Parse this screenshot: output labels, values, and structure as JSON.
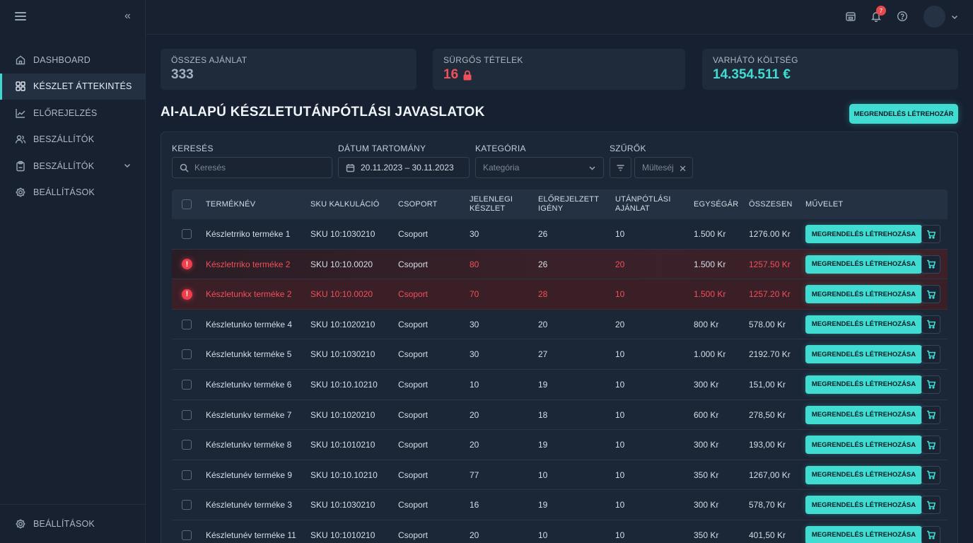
{
  "sidebar": {
    "items": [
      {
        "label": "DASHBOARD",
        "icon": "home-icon"
      },
      {
        "label": "KÉSZLET ÁTTEKINTÉS",
        "icon": "grid-icon",
        "active": true
      },
      {
        "label": "ELŐREJELZÉS",
        "icon": "trend-icon"
      },
      {
        "label": "BESZÁLLÍTÓK",
        "icon": "users-icon"
      },
      {
        "label": "BESZÁLLÍTÓK",
        "icon": "clipboard-icon",
        "has_chevron": true
      },
      {
        "label": "BEÁLLÍTÁSOK",
        "icon": "gear-icon"
      }
    ],
    "bottom_item": {
      "label": "BEÁLLÍTÁSOK",
      "icon": "gear-icon"
    }
  },
  "topbar": {
    "notification_count": "7"
  },
  "stats": {
    "total_offers": {
      "label": "ÖSSZES AJÁNLAT",
      "value": "333"
    },
    "urgent_items": {
      "label": "SÜRGŐS TÉTELEK",
      "value": "16"
    },
    "expected_cost": {
      "label": "VARHÁTÓ KÖLTSÉG",
      "value": "14.354.511 €"
    }
  },
  "page_title": "AI-ALAPÚ KÉSZLETUTÁNPÓTLÁSI JAVASLATOK",
  "create_order_button": "MEGRENDELÉS LÉTREHOZÁR",
  "filters": {
    "search_label": "KERESÉS",
    "search_placeholder": "Keresés",
    "date_label": "DÁTUM TARTOMÁNY",
    "date_value": "20.11.2023 – 30.11.2023",
    "category_label": "KATEGÓRIA",
    "category_placeholder": "Kategória",
    "filters_label": "SZŰRŐK",
    "chip_label": "Mülteséj"
  },
  "table": {
    "headers": [
      "TERMÉKNÉV",
      "SKU KALKULÁCIÓ",
      "CSOPORT",
      "JELENLEGI KÉSZLET",
      "ELŐREJELZETT IGÉNY",
      "UTÁNPÓTLÁSI AJÁNLAT",
      "EGYSÉGÁR",
      "ÖSSZESEN",
      "MŰVELET"
    ],
    "action_label": "MEGRENDELÉS LÉTREHOZÁSA",
    "rows": [
      {
        "name": "Készletrriko terméke 1",
        "sku": "SKU 10:1030210",
        "group": "Csoport",
        "stock": "30",
        "forecast": "26",
        "offer": "10",
        "unit_price": "1.500 Kr",
        "total": "1276.00 Kr",
        "alert": false
      },
      {
        "name": "Készletrriko terméke 2",
        "sku": "SKU 10:10.0020",
        "group": "Csoport",
        "stock": "80",
        "forecast": "26",
        "offer": "20",
        "unit_price": "1.500 Kr",
        "total": "1257.50 Kr",
        "alert": true,
        "level": "soft"
      },
      {
        "name": "Készletunkx terméke 2",
        "sku": "SKU 10:10.0020",
        "group": "Csoport",
        "stock": "70",
        "forecast": "28",
        "offer": "10",
        "unit_price": "1.500 Kr",
        "total": "1257.20 Kr",
        "alert": true,
        "level": "strong"
      },
      {
        "name": "Készletunko terméke 4",
        "sku": "SKU 10:1020210",
        "group": "Csoport",
        "stock": "30",
        "forecast": "20",
        "offer": "20",
        "unit_price": "800 Kr",
        "total": "578.00 Kr",
        "alert": false
      },
      {
        "name": "Készletunkk terméke 5",
        "sku": "SKU 10:1030210",
        "group": "Csoport",
        "stock": "30",
        "forecast": "27",
        "offer": "10",
        "unit_price": "1.000 Kr",
        "total": "2192.70 Kr",
        "alert": false
      },
      {
        "name": "Készletunkv terméke 6",
        "sku": "SKU 10:10.10210",
        "group": "Csoport",
        "stock": "10",
        "forecast": "19",
        "offer": "10",
        "unit_price": "300 Kr",
        "total": "151,00 Kr",
        "alert": false
      },
      {
        "name": "Készletunkv terméke 7",
        "sku": "SKU 10:1020210",
        "group": "Csoport",
        "stock": "20",
        "forecast": "18",
        "offer": "10",
        "unit_price": "600 Kr",
        "total": "278,50 Kr",
        "alert": false
      },
      {
        "name": "Készletunkv terméke 8",
        "sku": "SKU 10:1010210",
        "group": "Csoport",
        "stock": "20",
        "forecast": "19",
        "offer": "10",
        "unit_price": "300 Kr",
        "total": "193,00 Kr",
        "alert": false
      },
      {
        "name": "Készletunév terméke 9",
        "sku": "SKU 10:10.10210",
        "group": "Csoport",
        "stock": "77",
        "forecast": "10",
        "offer": "10",
        "unit_price": "350 Kr",
        "total": "1267,00 Kr",
        "alert": false
      },
      {
        "name": "Készletunév terméke 3",
        "sku": "SKU 10:1030210",
        "group": "Csoport",
        "stock": "16",
        "forecast": "19",
        "offer": "10",
        "unit_price": "300 Kr",
        "total": "578,70 Kr",
        "alert": false
      },
      {
        "name": "Készletunév terméke 11",
        "sku": "SKU 10:1010210",
        "group": "Csoport",
        "stock": "20",
        "forecast": "10",
        "offer": "10",
        "unit_price": "350 Kr",
        "total": "401,50 Kr",
        "alert": false
      }
    ]
  },
  "colors": {
    "accent": "#40dcd2",
    "alert": "#f0505a",
    "value_neutral": "#9fb0c2",
    "value_cost": "#40dcd2"
  }
}
